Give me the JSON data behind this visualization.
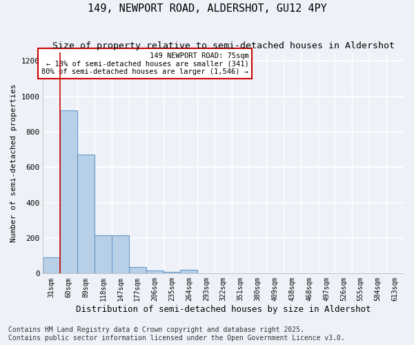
{
  "title": "149, NEWPORT ROAD, ALDERSHOT, GU12 4PY",
  "subtitle": "Size of property relative to semi-detached houses in Aldershot",
  "xlabel": "Distribution of semi-detached houses by size in Aldershot",
  "ylabel": "Number of semi-detached properties",
  "categories": [
    "31sqm",
    "60sqm",
    "89sqm",
    "118sqm",
    "147sqm",
    "177sqm",
    "206sqm",
    "235sqm",
    "264sqm",
    "293sqm",
    "322sqm",
    "351sqm",
    "380sqm",
    "409sqm",
    "438sqm",
    "468sqm",
    "497sqm",
    "526sqm",
    "555sqm",
    "584sqm",
    "613sqm"
  ],
  "values": [
    90,
    920,
    670,
    215,
    215,
    37,
    15,
    10,
    20,
    0,
    0,
    0,
    0,
    0,
    0,
    0,
    0,
    0,
    0,
    0,
    0
  ],
  "bar_color": "#b8cfe8",
  "bar_edge_color": "#6699cc",
  "annotation_text": "149 NEWPORT ROAD: 75sqm\n← 18% of semi-detached houses are smaller (341)\n80% of semi-detached houses are larger (1,546) →",
  "annotation_box_color": "#ffffff",
  "annotation_box_edge_color": "#cc0000",
  "vline_color": "#cc0000",
  "vline_x_bar_index": 0.5,
  "ylim": [
    0,
    1250
  ],
  "yticks": [
    0,
    200,
    400,
    600,
    800,
    1000,
    1200
  ],
  "background_color": "#eef2f8",
  "plot_bg_color": "#eef2f8",
  "grid_color": "#ffffff",
  "footer": "Contains HM Land Registry data © Crown copyright and database right 2025.\nContains public sector information licensed under the Open Government Licence v3.0.",
  "title_fontsize": 11,
  "subtitle_fontsize": 9.5,
  "xlabel_fontsize": 9,
  "ylabel_fontsize": 8,
  "footer_fontsize": 7
}
